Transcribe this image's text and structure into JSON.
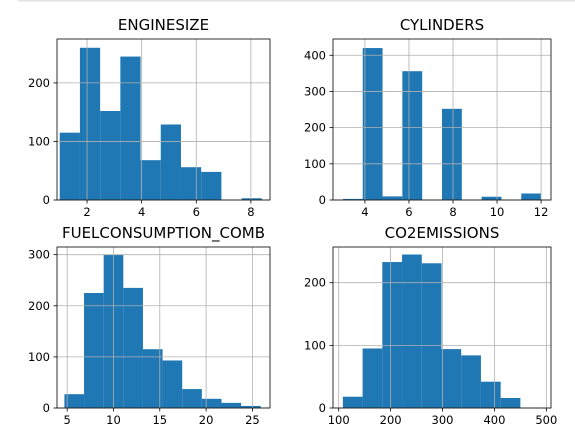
{
  "chart_data": [
    {
      "type": "bar",
      "title": "ENGINESIZE",
      "xlim": [
        0.9,
        8.7
      ],
      "ylim": [
        0,
        275
      ],
      "xticks": [
        2,
        4,
        6,
        8
      ],
      "yticks": [
        0,
        100,
        200
      ],
      "bins": [
        {
          "x0": 1.0,
          "x1": 1.74,
          "count": 115
        },
        {
          "x0": 1.74,
          "x1": 2.48,
          "count": 260
        },
        {
          "x0": 2.48,
          "x1": 3.22,
          "count": 152
        },
        {
          "x0": 3.22,
          "x1": 3.96,
          "count": 245
        },
        {
          "x0": 3.96,
          "x1": 4.7,
          "count": 68
        },
        {
          "x0": 4.7,
          "x1": 5.44,
          "count": 129
        },
        {
          "x0": 5.44,
          "x1": 6.18,
          "count": 56
        },
        {
          "x0": 6.18,
          "x1": 6.92,
          "count": 48
        },
        {
          "x0": 6.92,
          "x1": 7.66,
          "count": 0
        },
        {
          "x0": 7.66,
          "x1": 8.4,
          "count": 3
        }
      ],
      "grid": true
    },
    {
      "type": "bar",
      "title": "CYLINDERS",
      "xlim": [
        2.55,
        12.45
      ],
      "ylim": [
        0,
        445
      ],
      "xticks": [
        4,
        6,
        8,
        10,
        12
      ],
      "yticks": [
        0,
        100,
        200,
        300,
        400
      ],
      "bins": [
        {
          "x0": 3.0,
          "x1": 3.9,
          "count": 3
        },
        {
          "x0": 3.9,
          "x1": 4.8,
          "count": 420
        },
        {
          "x0": 4.8,
          "x1": 5.7,
          "count": 10
        },
        {
          "x0": 5.7,
          "x1": 6.6,
          "count": 356
        },
        {
          "x0": 6.6,
          "x1": 7.5,
          "count": 0
        },
        {
          "x0": 7.5,
          "x1": 8.4,
          "count": 252
        },
        {
          "x0": 8.4,
          "x1": 9.3,
          "count": 0
        },
        {
          "x0": 9.3,
          "x1": 10.2,
          "count": 9
        },
        {
          "x0": 10.2,
          "x1": 11.1,
          "count": 0
        },
        {
          "x0": 11.1,
          "x1": 12.0,
          "count": 18
        }
      ],
      "grid": true
    },
    {
      "type": "bar",
      "title": "FUELCONSUMPTION_COMB",
      "xlim": [
        3.9,
        26.9
      ],
      "ylim": [
        0,
        315
      ],
      "xticks": [
        5,
        10,
        15,
        20,
        25
      ],
      "yticks": [
        0,
        100,
        200,
        300
      ],
      "bins": [
        {
          "x0": 4.7,
          "x1": 6.82,
          "count": 27
        },
        {
          "x0": 6.82,
          "x1": 8.94,
          "count": 225
        },
        {
          "x0": 8.94,
          "x1": 11.06,
          "count": 300
        },
        {
          "x0": 11.06,
          "x1": 13.18,
          "count": 235
        },
        {
          "x0": 13.18,
          "x1": 15.3,
          "count": 115
        },
        {
          "x0": 15.3,
          "x1": 17.42,
          "count": 93
        },
        {
          "x0": 17.42,
          "x1": 19.54,
          "count": 37
        },
        {
          "x0": 19.54,
          "x1": 21.66,
          "count": 18
        },
        {
          "x0": 21.66,
          "x1": 23.78,
          "count": 10
        },
        {
          "x0": 23.78,
          "x1": 25.9,
          "count": 4
        }
      ],
      "grid": true
    },
    {
      "type": "bar",
      "title": "CO2EMISSIONS",
      "xlim": [
        89,
        509
      ],
      "ylim": [
        0,
        257
      ],
      "xticks": [
        100,
        200,
        300,
        400,
        500
      ],
      "yticks": [
        0,
        100,
        200
      ],
      "bins": [
        {
          "x0": 108,
          "x1": 146,
          "count": 18
        },
        {
          "x0": 146,
          "x1": 184,
          "count": 95
        },
        {
          "x0": 184,
          "x1": 222,
          "count": 233
        },
        {
          "x0": 222,
          "x1": 260,
          "count": 245
        },
        {
          "x0": 260,
          "x1": 298,
          "count": 231
        },
        {
          "x0": 298,
          "x1": 336,
          "count": 94
        },
        {
          "x0": 336,
          "x1": 374,
          "count": 84
        },
        {
          "x0": 374,
          "x1": 412,
          "count": 42
        },
        {
          "x0": 412,
          "x1": 450,
          "count": 16
        },
        {
          "x0": 450,
          "x1": 488,
          "count": 0
        }
      ],
      "grid": true
    }
  ]
}
